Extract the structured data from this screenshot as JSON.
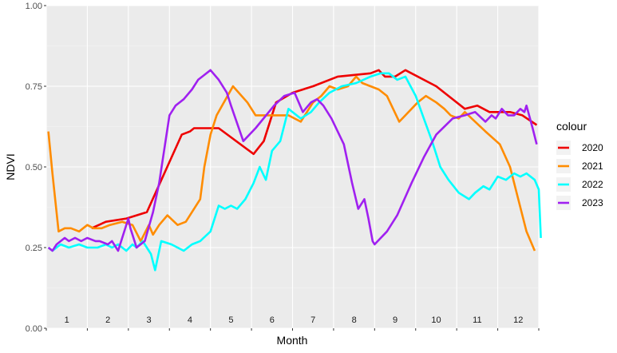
{
  "chart_data": {
    "type": "line",
    "xlabel": "Month",
    "ylabel": "NDVI",
    "ylim": [
      0,
      1
    ],
    "xlim": [
      0.5,
      12.5
    ],
    "yticks": [
      "0.00",
      "0.25",
      "0.50",
      "0.75",
      "1.00"
    ],
    "ytick_values": [
      0,
      0.25,
      0.5,
      0.75,
      1
    ],
    "month_labels": [
      "1",
      "2",
      "3",
      "4",
      "5",
      "6",
      "7",
      "8",
      "9",
      "10",
      "11",
      "12"
    ],
    "grid": true,
    "legend": {
      "title": "colour",
      "position": "right"
    },
    "series": [
      {
        "name": "2020",
        "color": "#ee0000",
        "x": [
          1.6,
          1.95,
          2.45,
          2.95,
          3.8,
          4.0,
          4.1,
          4.7,
          5.55,
          5.8,
          6.1,
          6.5,
          7.0,
          7.6,
          8.4,
          8.6,
          8.75,
          9.0,
          9.25,
          10.0,
          10.7,
          11.0,
          11.3,
          11.8,
          12.1,
          12.45
        ],
        "y": [
          0.31,
          0.33,
          0.34,
          0.36,
          0.6,
          0.61,
          0.62,
          0.62,
          0.54,
          0.58,
          0.7,
          0.73,
          0.75,
          0.78,
          0.79,
          0.8,
          0.78,
          0.78,
          0.8,
          0.75,
          0.68,
          0.69,
          0.67,
          0.67,
          0.66,
          0.63
        ]
      },
      {
        "name": "2021",
        "color": "#ff8c00",
        "x": [
          0.55,
          0.65,
          0.8,
          0.95,
          1.1,
          1.3,
          1.5,
          1.65,
          1.85,
          2.05,
          2.35,
          2.6,
          2.8,
          3.0,
          3.1,
          3.25,
          3.45,
          3.7,
          3.9,
          4.25,
          4.35,
          4.5,
          4.65,
          5.05,
          5.4,
          5.6,
          5.7,
          5.9,
          6.05,
          6.4,
          6.7,
          7.0,
          7.2,
          7.4,
          7.6,
          7.85,
          8.05,
          8.2,
          8.4,
          8.6,
          8.8,
          9.1,
          9.4,
          9.55,
          9.75,
          10.0,
          10.2,
          10.35,
          10.55,
          10.7,
          10.95,
          11.2,
          11.55,
          11.8,
          12.0,
          12.2,
          12.4
        ],
        "y": [
          0.61,
          0.48,
          0.3,
          0.31,
          0.31,
          0.3,
          0.32,
          0.31,
          0.31,
          0.32,
          0.33,
          0.32,
          0.27,
          0.32,
          0.29,
          0.32,
          0.35,
          0.32,
          0.33,
          0.4,
          0.5,
          0.6,
          0.66,
          0.75,
          0.7,
          0.66,
          0.66,
          0.66,
          0.66,
          0.66,
          0.64,
          0.7,
          0.72,
          0.75,
          0.74,
          0.75,
          0.78,
          0.76,
          0.75,
          0.74,
          0.72,
          0.64,
          0.68,
          0.7,
          0.72,
          0.7,
          0.68,
          0.66,
          0.65,
          0.67,
          0.64,
          0.61,
          0.57,
          0.5,
          0.4,
          0.3,
          0.24
        ]
      },
      {
        "name": "2022",
        "color": "#00ffff",
        "x": [
          0.55,
          0.65,
          0.85,
          1.05,
          1.3,
          1.5,
          1.75,
          1.95,
          2.1,
          2.25,
          2.45,
          2.6,
          2.7,
          2.85,
          3.0,
          3.05,
          3.15,
          3.3,
          3.55,
          3.85,
          4.05,
          4.25,
          4.5,
          4.7,
          4.85,
          5.0,
          5.15,
          5.35,
          5.55,
          5.7,
          5.85,
          6.0,
          6.2,
          6.4,
          6.7,
          6.95,
          7.15,
          7.4,
          7.7,
          8.05,
          8.4,
          8.65,
          8.85,
          9.05,
          9.25,
          9.5,
          9.7,
          9.9,
          10.1,
          10.3,
          10.55,
          10.8,
          10.95,
          11.15,
          11.3,
          11.5,
          11.7,
          11.9,
          12.05,
          12.2,
          12.4,
          12.5,
          12.55
        ],
        "y": [
          0.25,
          0.24,
          0.26,
          0.25,
          0.26,
          0.25,
          0.25,
          0.26,
          0.25,
          0.26,
          0.24,
          0.26,
          0.25,
          0.27,
          0.24,
          0.23,
          0.18,
          0.27,
          0.26,
          0.24,
          0.26,
          0.27,
          0.3,
          0.38,
          0.37,
          0.38,
          0.37,
          0.4,
          0.45,
          0.5,
          0.46,
          0.55,
          0.58,
          0.68,
          0.65,
          0.67,
          0.7,
          0.73,
          0.75,
          0.76,
          0.78,
          0.79,
          0.79,
          0.77,
          0.78,
          0.72,
          0.65,
          0.58,
          0.5,
          0.46,
          0.42,
          0.4,
          0.42,
          0.44,
          0.43,
          0.47,
          0.46,
          0.48,
          0.47,
          0.48,
          0.46,
          0.43,
          0.28
        ]
      },
      {
        "name": "2023",
        "color": "#a020f0",
        "x": [
          0.55,
          0.65,
          0.75,
          0.95,
          1.05,
          1.2,
          1.35,
          1.5,
          1.7,
          1.8,
          2.0,
          2.1,
          2.25,
          2.35,
          2.5,
          2.55,
          2.7,
          2.9,
          3.1,
          3.25,
          3.5,
          3.65,
          3.85,
          4.05,
          4.2,
          4.5,
          4.7,
          4.9,
          5.0,
          5.3,
          5.6,
          6.05,
          6.3,
          6.55,
          6.75,
          6.95,
          7.1,
          7.25,
          7.45,
          7.75,
          7.95,
          8.1,
          8.25,
          8.35,
          8.45,
          8.5,
          8.8,
          9.05,
          9.4,
          9.7,
          10.0,
          10.4,
          10.7,
          10.95,
          11.2,
          11.35,
          11.45,
          11.6,
          11.75,
          11.9,
          12.05,
          12.15,
          12.2,
          12.35,
          12.45
        ],
        "y": [
          0.25,
          0.24,
          0.26,
          0.28,
          0.27,
          0.28,
          0.27,
          0.28,
          0.27,
          0.27,
          0.26,
          0.27,
          0.24,
          0.28,
          0.34,
          0.31,
          0.25,
          0.27,
          0.36,
          0.45,
          0.66,
          0.69,
          0.71,
          0.74,
          0.77,
          0.8,
          0.77,
          0.73,
          0.69,
          0.58,
          0.62,
          0.69,
          0.72,
          0.73,
          0.67,
          0.7,
          0.71,
          0.69,
          0.65,
          0.57,
          0.45,
          0.37,
          0.4,
          0.34,
          0.27,
          0.26,
          0.3,
          0.35,
          0.45,
          0.53,
          0.6,
          0.65,
          0.66,
          0.67,
          0.64,
          0.66,
          0.65,
          0.68,
          0.66,
          0.66,
          0.68,
          0.67,
          0.69,
          0.62,
          0.57
        ]
      }
    ]
  }
}
